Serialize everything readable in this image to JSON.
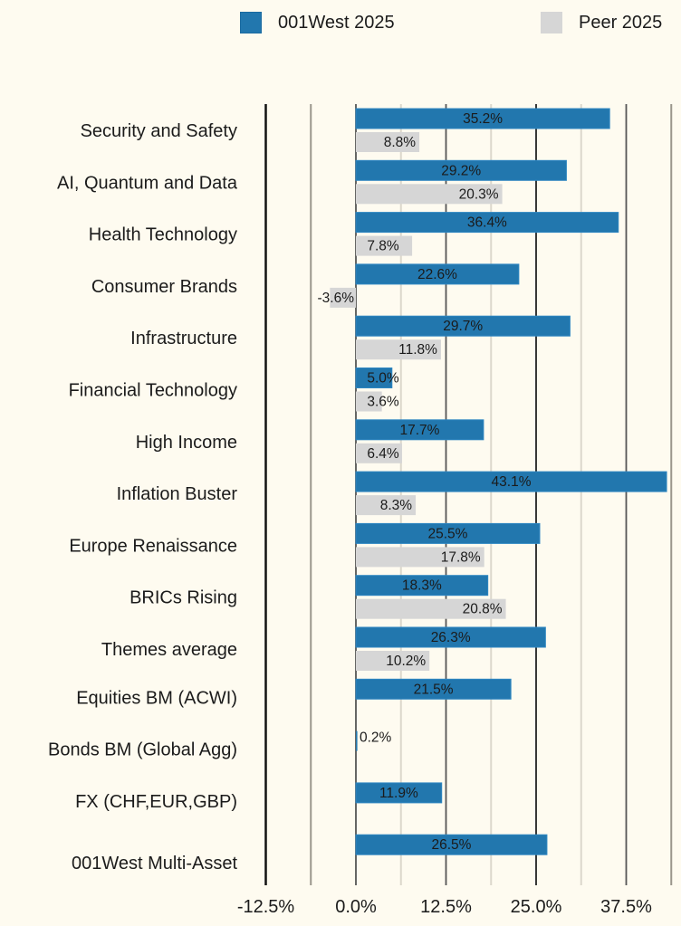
{
  "legend": {
    "items": [
      {
        "label": "001West 2025",
        "color": "#2277ae"
      },
      {
        "label": "Peer 2025",
        "color": "#d6d6d6"
      }
    ]
  },
  "chart_data": {
    "type": "bar",
    "orientation": "horizontal",
    "title": "",
    "xlabel": "",
    "ylabel": "",
    "xlim": [
      -12.5,
      43.75
    ],
    "xticks": [
      -12.5,
      0.0,
      12.5,
      25.0,
      37.5
    ],
    "xtick_labels": [
      "-12.5%",
      "0.0%",
      "12.5%",
      "25.0%",
      "37.5%"
    ],
    "grid": true,
    "legend_position": "top",
    "categories": [
      "Security and Safety",
      "AI, Quantum and Data",
      "Health Technology",
      "Consumer Brands",
      "Infrastructure",
      "Financial Technology",
      "High Income",
      "Inflation Buster",
      "Europe Renaissance",
      "BRICs Rising",
      "Themes average",
      "Equities BM (ACWI)",
      "Bonds BM (Global Agg)",
      "FX (CHF,EUR,GBP)",
      "001West Multi-Asset"
    ],
    "series": [
      {
        "name": "001West 2025",
        "color": "#2277ae",
        "values": [
          35.2,
          29.2,
          36.4,
          22.6,
          29.7,
          5.0,
          17.7,
          43.1,
          25.5,
          18.3,
          26.3,
          21.5,
          0.2,
          11.9,
          26.5
        ],
        "labels": [
          "35.2%",
          "29.2%",
          "36.4%",
          "22.6%",
          "29.7%",
          "5.0%",
          "17.7%",
          "43.1%",
          "25.5%",
          "18.3%",
          "26.3%",
          "21.5%",
          "0.2%",
          "11.9%",
          "26.5%"
        ]
      },
      {
        "name": "Peer 2025",
        "color": "#d6d6d6",
        "values": [
          8.8,
          20.3,
          7.8,
          -3.6,
          11.8,
          3.6,
          6.4,
          8.3,
          17.8,
          20.8,
          10.2,
          null,
          null,
          null,
          null
        ],
        "labels": [
          "8.8%",
          "20.3%",
          "7.8%",
          "-3.6%",
          "11.8%",
          "3.6%",
          "6.4%",
          "8.3%",
          "17.8%",
          "20.8%",
          "10.2%",
          null,
          null,
          null,
          null
        ]
      }
    ]
  }
}
